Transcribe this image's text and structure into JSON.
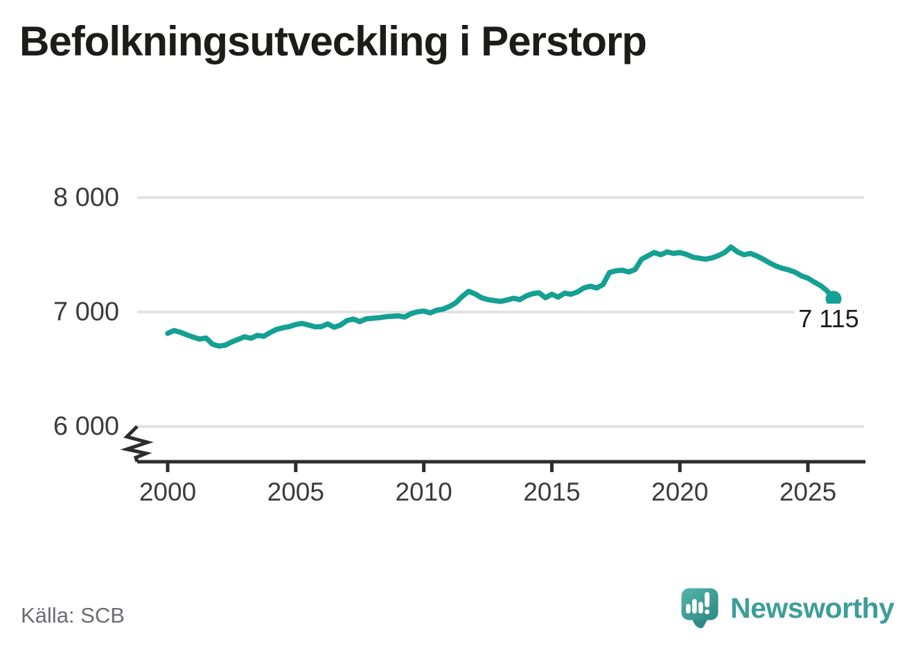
{
  "title": "Befolkningsutveckling i Perstorp",
  "source": "Källa: SCB",
  "brand": {
    "name": "Newsworthy",
    "icon": "newsworthy-speech-bubble-bar-chart-icon",
    "wordmark_color": "#3d9e99",
    "icon_color_light": "#55b4a8",
    "icon_color_dark": "#2e8b86"
  },
  "end_label": "7 115",
  "chart_data": {
    "type": "line",
    "title": "Befolkningsutveckling i Perstorp",
    "xlabel": "",
    "ylabel": "",
    "grid": "horizontal-only",
    "y_axis_break": true,
    "legend": "none",
    "line_color": "#14a093",
    "grid_color": "#e2e2e2",
    "axis_color": "#2d2d2d",
    "x_ticks": [
      2000,
      2005,
      2010,
      2015,
      2020,
      2025
    ],
    "y_ticks": [
      {
        "value": 8000,
        "label": "8 000"
      },
      {
        "value": 7000,
        "label": "7 000"
      },
      {
        "value": 6000,
        "label": "6 000"
      }
    ],
    "x_range": [
      2000,
      2026
    ],
    "last_point": {
      "x": 2026.0,
      "value": 7115,
      "label": "7 115"
    },
    "series": [
      {
        "name": "Perstorp",
        "color": "#14a093",
        "points": [
          [
            2000.0,
            6813
          ],
          [
            2000.25,
            6838
          ],
          [
            2000.5,
            6822
          ],
          [
            2000.75,
            6800
          ],
          [
            2001.0,
            6780
          ],
          [
            2001.25,
            6763
          ],
          [
            2001.5,
            6772
          ],
          [
            2001.75,
            6718
          ],
          [
            2002.0,
            6702
          ],
          [
            2002.25,
            6710
          ],
          [
            2002.5,
            6738
          ],
          [
            2002.75,
            6760
          ],
          [
            2003.0,
            6783
          ],
          [
            2003.25,
            6770
          ],
          [
            2003.5,
            6795
          ],
          [
            2003.75,
            6788
          ],
          [
            2004.0,
            6820
          ],
          [
            2004.25,
            6848
          ],
          [
            2004.5,
            6862
          ],
          [
            2004.75,
            6872
          ],
          [
            2005.0,
            6890
          ],
          [
            2005.25,
            6900
          ],
          [
            2005.5,
            6886
          ],
          [
            2005.75,
            6870
          ],
          [
            2006.0,
            6872
          ],
          [
            2006.25,
            6896
          ],
          [
            2006.5,
            6866
          ],
          [
            2006.75,
            6886
          ],
          [
            2007.0,
            6925
          ],
          [
            2007.25,
            6938
          ],
          [
            2007.5,
            6916
          ],
          [
            2007.75,
            6940
          ],
          [
            2008.0,
            6945
          ],
          [
            2008.25,
            6950
          ],
          [
            2008.5,
            6958
          ],
          [
            2008.75,
            6962
          ],
          [
            2009.0,
            6966
          ],
          [
            2009.25,
            6956
          ],
          [
            2009.5,
            6985
          ],
          [
            2009.75,
            7002
          ],
          [
            2010.0,
            7008
          ],
          [
            2010.25,
            6992
          ],
          [
            2010.5,
            7015
          ],
          [
            2010.75,
            7025
          ],
          [
            2011.0,
            7048
          ],
          [
            2011.25,
            7080
          ],
          [
            2011.5,
            7135
          ],
          [
            2011.75,
            7180
          ],
          [
            2012.0,
            7158
          ],
          [
            2012.25,
            7125
          ],
          [
            2012.5,
            7108
          ],
          [
            2012.75,
            7100
          ],
          [
            2013.0,
            7092
          ],
          [
            2013.25,
            7105
          ],
          [
            2013.5,
            7120
          ],
          [
            2013.75,
            7108
          ],
          [
            2014.0,
            7140
          ],
          [
            2014.25,
            7160
          ],
          [
            2014.5,
            7168
          ],
          [
            2014.75,
            7125
          ],
          [
            2015.0,
            7155
          ],
          [
            2015.25,
            7130
          ],
          [
            2015.5,
            7165
          ],
          [
            2015.75,
            7155
          ],
          [
            2016.0,
            7175
          ],
          [
            2016.25,
            7210
          ],
          [
            2016.5,
            7225
          ],
          [
            2016.75,
            7210
          ],
          [
            2017.0,
            7240
          ],
          [
            2017.25,
            7345
          ],
          [
            2017.5,
            7360
          ],
          [
            2017.75,
            7365
          ],
          [
            2018.0,
            7350
          ],
          [
            2018.25,
            7370
          ],
          [
            2018.5,
            7460
          ],
          [
            2018.75,
            7490
          ],
          [
            2019.0,
            7520
          ],
          [
            2019.25,
            7500
          ],
          [
            2019.5,
            7525
          ],
          [
            2019.75,
            7512
          ],
          [
            2020.0,
            7520
          ],
          [
            2020.25,
            7505
          ],
          [
            2020.5,
            7480
          ],
          [
            2020.75,
            7470
          ],
          [
            2021.0,
            7462
          ],
          [
            2021.25,
            7472
          ],
          [
            2021.5,
            7492
          ],
          [
            2021.75,
            7520
          ],
          [
            2022.0,
            7568
          ],
          [
            2022.25,
            7525
          ],
          [
            2022.5,
            7500
          ],
          [
            2022.75,
            7512
          ],
          [
            2023.0,
            7490
          ],
          [
            2023.25,
            7462
          ],
          [
            2023.5,
            7430
          ],
          [
            2023.75,
            7402
          ],
          [
            2024.0,
            7382
          ],
          [
            2024.25,
            7368
          ],
          [
            2024.5,
            7348
          ],
          [
            2024.75,
            7315
          ],
          [
            2025.0,
            7295
          ],
          [
            2025.25,
            7262
          ],
          [
            2025.5,
            7230
          ],
          [
            2025.75,
            7185
          ],
          [
            2026.0,
            7115
          ]
        ]
      }
    ]
  }
}
